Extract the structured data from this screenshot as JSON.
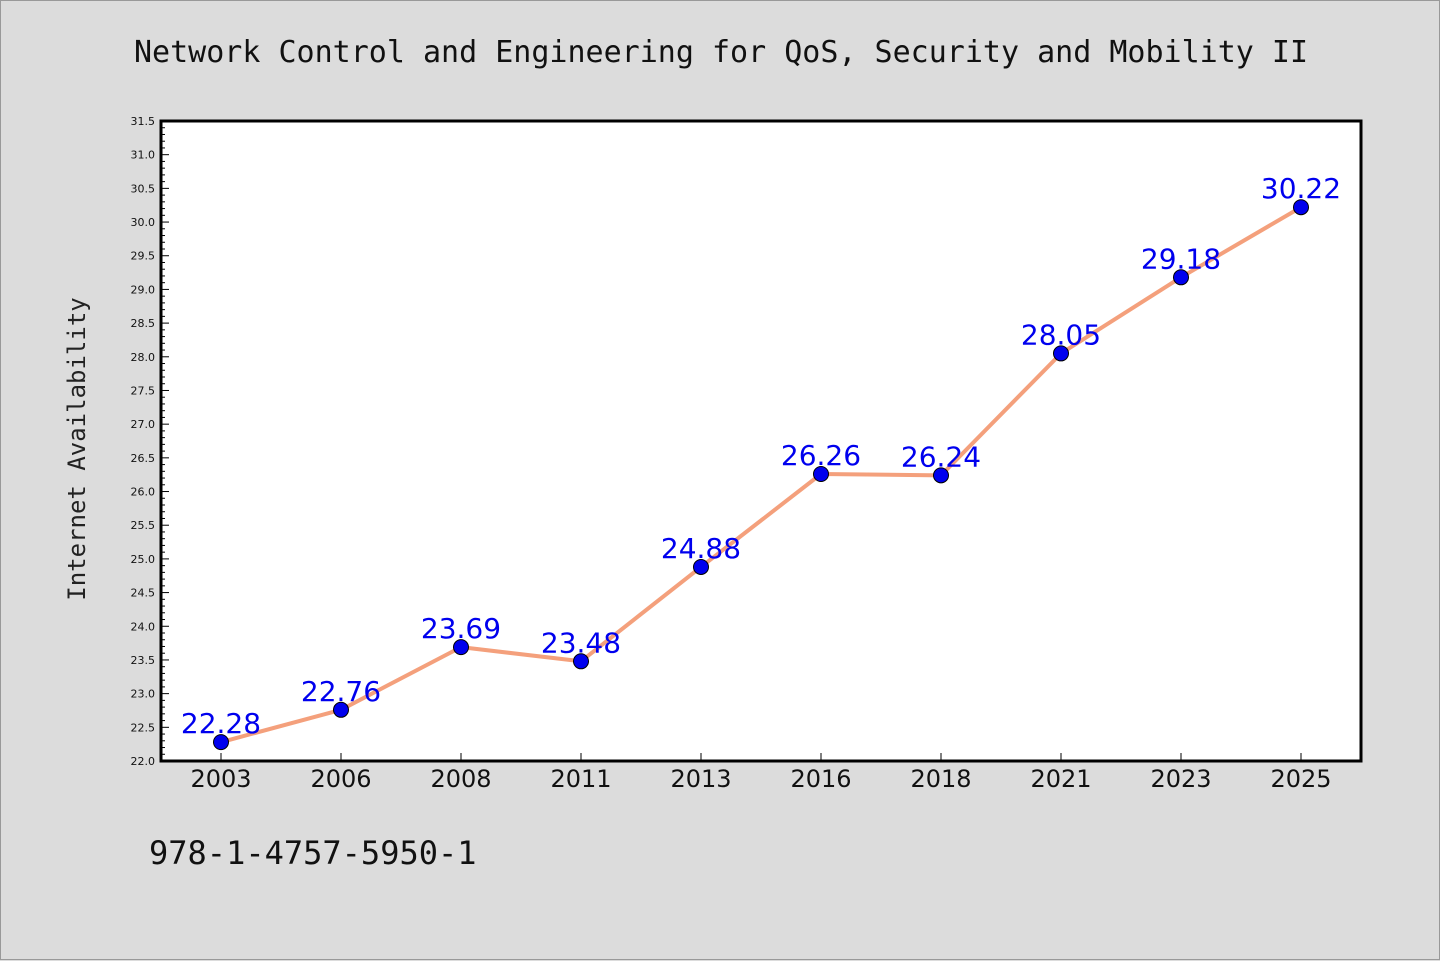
{
  "caption": "978-1-4757-5950-1",
  "colors": {
    "background": "#dcdcdc",
    "plot_background": "#ffffff",
    "line": "#f4a07c",
    "marker": "#0000ee",
    "data_label": "#0000ee"
  },
  "chart_data": {
    "type": "line",
    "title": "Network Control and Engineering for QoS, Security and Mobility II",
    "xlabel": "",
    "ylabel": "Internet Availability",
    "categories": [
      "2003",
      "2006",
      "2008",
      "2011",
      "2013",
      "2016",
      "2018",
      "2021",
      "2023",
      "2025"
    ],
    "series": [
      {
        "values": [
          22.28,
          22.76,
          23.69,
          23.48,
          24.88,
          26.26,
          26.24,
          28.05,
          29.18,
          30.22
        ],
        "labels": [
          "22.28",
          "22.76",
          "23.69",
          "23.48",
          "24.88",
          "26.26",
          "26.24",
          "28.05",
          "29.18",
          "30.22"
        ]
      }
    ],
    "ylim": [
      22.0,
      31.5
    ],
    "yticks": [
      "22.0",
      "22.5",
      "23.0",
      "23.5",
      "24.0",
      "24.5",
      "25.0",
      "25.5",
      "26.0",
      "26.5",
      "27.0",
      "27.5",
      "28.0",
      "28.5",
      "29.0",
      "29.5",
      "30.0",
      "30.5",
      "31.0",
      "31.5"
    ],
    "grid": false,
    "legend": "none"
  }
}
